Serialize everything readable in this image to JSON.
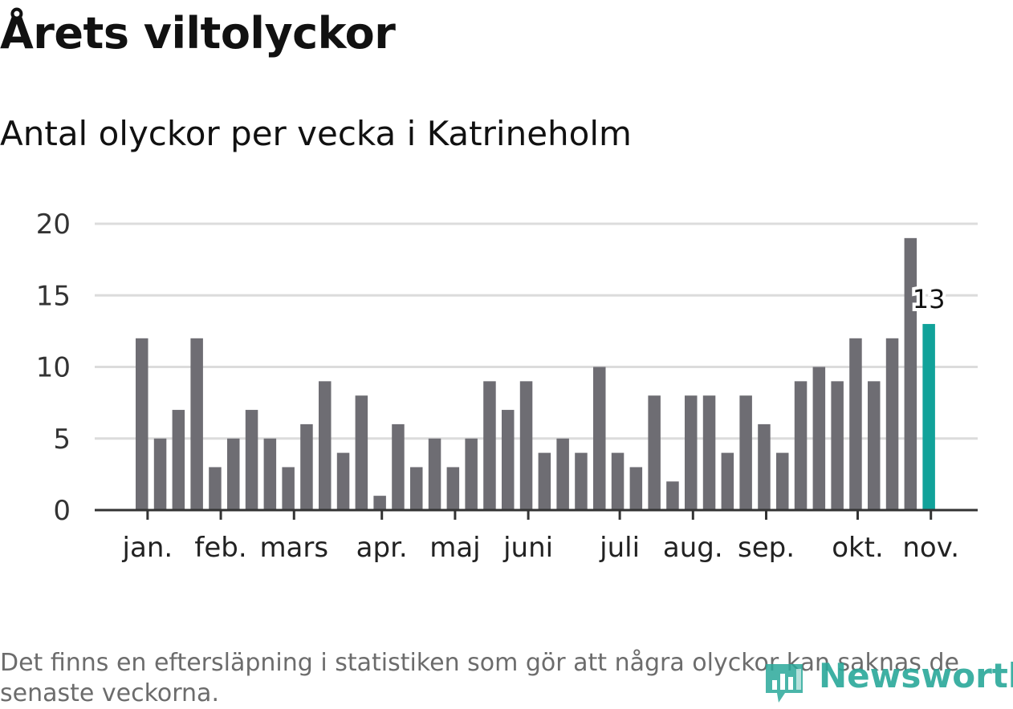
{
  "title": "Årets viltolyckor",
  "subtitle": "Antal olyckor per vecka i Katrineholm",
  "note": "Det finns en eftersläpning i statistiken som gör att några olyckor kan saknas de senaste veckorna.",
  "logo": {
    "text": "Newsworthy",
    "icon": "bar-chart-speech-icon",
    "color": "#2aa89a"
  },
  "colors": {
    "bar": "#6e6d73",
    "highlight": "#11a29a",
    "grid": "#dcdcdc",
    "axis": "#333333"
  },
  "chart_data": {
    "type": "bar",
    "title": "Antal olyckor per vecka i Katrineholm",
    "xlabel": "",
    "ylabel": "",
    "ylim": [
      0,
      20
    ],
    "yticks": [
      0,
      5,
      10,
      15,
      20
    ],
    "grid": true,
    "values": [
      12,
      5,
      7,
      12,
      3,
      5,
      7,
      5,
      3,
      6,
      9,
      4,
      8,
      1,
      6,
      3,
      5,
      3,
      5,
      9,
      7,
      9,
      4,
      5,
      4,
      10,
      4,
      3,
      8,
      2,
      8,
      8,
      4,
      8,
      6,
      4,
      9,
      10,
      9,
      12,
      9,
      12,
      19,
      13
    ],
    "highlight_index": 43,
    "highlight_label": "13",
    "month_ticks": [
      {
        "label": "jan.",
        "bar": 0.4
      },
      {
        "label": "feb.",
        "bar": 4.4
      },
      {
        "label": "mars",
        "bar": 8.4
      },
      {
        "label": "apr.",
        "bar": 13.2
      },
      {
        "label": "maj",
        "bar": 17.2
      },
      {
        "label": "juni",
        "bar": 21.2
      },
      {
        "label": "juli",
        "bar": 26.2
      },
      {
        "label": "aug.",
        "bar": 30.2
      },
      {
        "label": "sep.",
        "bar": 34.2
      },
      {
        "label": "okt.",
        "bar": 39.2
      },
      {
        "label": "nov.",
        "bar": 43.2
      }
    ]
  }
}
